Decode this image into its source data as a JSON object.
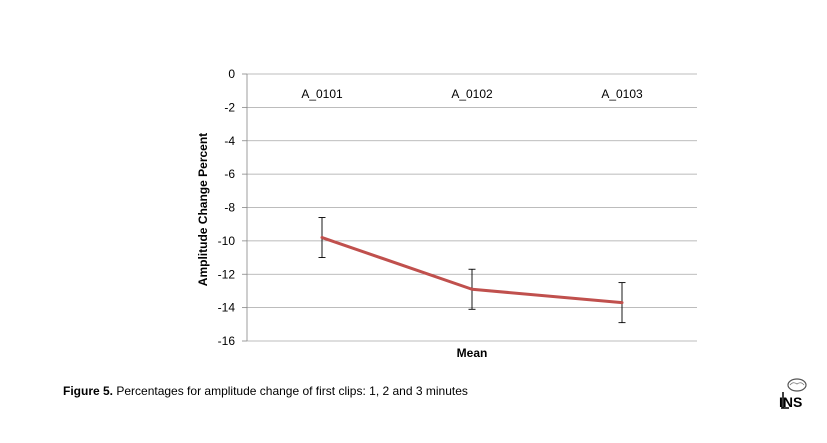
{
  "chart_data": {
    "type": "line",
    "categories": [
      "A_0101",
      "A_0102",
      "A_0103"
    ],
    "series": [
      {
        "values": [
          -9.8,
          -12.9,
          -13.7
        ],
        "error_low": [
          -11.0,
          -14.1,
          -14.9
        ],
        "error_high": [
          -8.6,
          -11.7,
          -12.5
        ],
        "color": "#c0504d"
      }
    ],
    "xlabel": "Mean",
    "ylabel": "Amplitude Change Percent",
    "ylim": [
      -16,
      0
    ],
    "yticks": [
      0,
      -2,
      -4,
      -6,
      -8,
      -10,
      -12,
      -14,
      -16
    ],
    "grid": true,
    "category_labels_position": "top"
  },
  "caption": {
    "label": "Figure 5.",
    "text": " Percentages for amplitude change of first clips: 1, 2 and 3 minutes"
  },
  "logo": {
    "text": "INS",
    "icon": "brain-logo-icon"
  }
}
